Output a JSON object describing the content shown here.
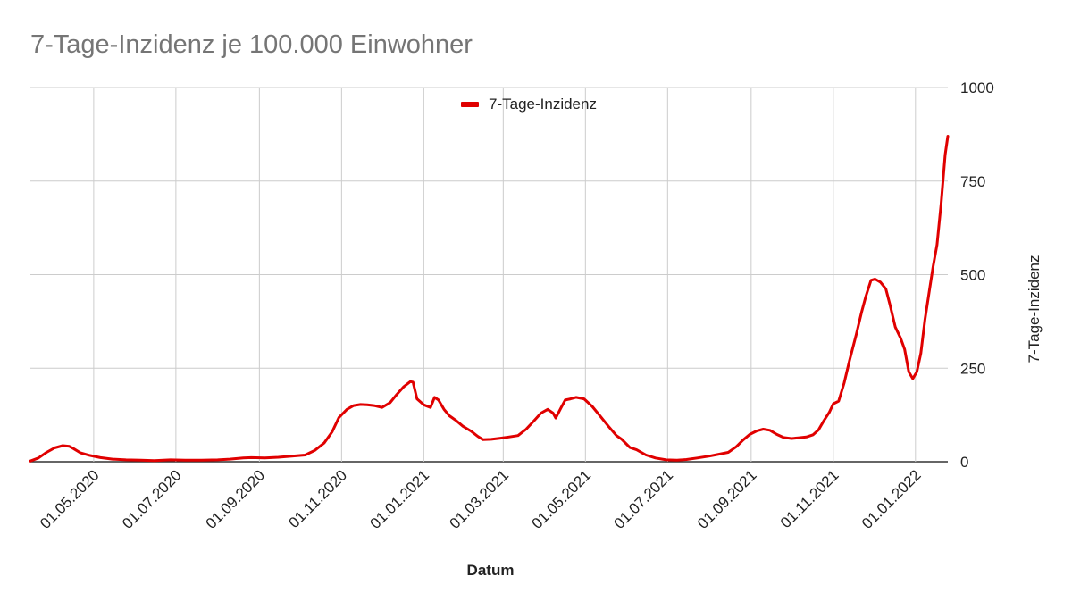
{
  "chart_data": {
    "type": "line",
    "title": "7-Tage-Inzidenz je 100.000 Einwohner",
    "xlabel": "Datum",
    "ylabel": "7-Tage-Inzidenz",
    "x_range": [
      "2020-03-15",
      "2022-01-25"
    ],
    "ylim": [
      0,
      1000
    ],
    "y_ticks": [
      0,
      250,
      500,
      750,
      1000
    ],
    "y_tick_labels": [
      "0",
      "250",
      "500",
      "750",
      "1000"
    ],
    "x_ticks": [
      "2020-05-01",
      "2020-07-01",
      "2020-09-01",
      "2020-11-01",
      "2021-01-01",
      "2021-03-01",
      "2021-05-01",
      "2021-07-01",
      "2021-09-01",
      "2021-11-01",
      "2022-01-01"
    ],
    "x_tick_labels": [
      "01.05.2020",
      "01.07.2020",
      "01.09.2020",
      "01.11.2020",
      "01.01.2021",
      "01.03.2021",
      "01.05.2021",
      "01.07.2021",
      "01.09.2021",
      "01.11.2021",
      "01.01.2022"
    ],
    "grid": true,
    "legend_position": "top",
    "series": [
      {
        "name": "7-Tage-Inzidenz",
        "color": "#e00000",
        "points": [
          [
            "2020-03-15",
            2
          ],
          [
            "2020-03-21",
            10
          ],
          [
            "2020-03-27",
            25
          ],
          [
            "2020-04-02",
            37
          ],
          [
            "2020-04-08",
            43
          ],
          [
            "2020-04-13",
            41
          ],
          [
            "2020-04-16",
            35
          ],
          [
            "2020-04-21",
            24
          ],
          [
            "2020-04-28",
            17
          ],
          [
            "2020-05-06",
            11
          ],
          [
            "2020-05-15",
            7
          ],
          [
            "2020-05-25",
            5
          ],
          [
            "2020-06-05",
            4
          ],
          [
            "2020-06-15",
            3
          ],
          [
            "2020-06-27",
            5
          ],
          [
            "2020-07-08",
            4
          ],
          [
            "2020-07-20",
            4
          ],
          [
            "2020-08-01",
            5
          ],
          [
            "2020-08-10",
            7
          ],
          [
            "2020-08-20",
            10
          ],
          [
            "2020-08-26",
            11
          ],
          [
            "2020-09-05",
            10
          ],
          [
            "2020-09-15",
            12
          ],
          [
            "2020-09-25",
            15
          ],
          [
            "2020-10-05",
            18
          ],
          [
            "2020-10-12",
            30
          ],
          [
            "2020-10-19",
            50
          ],
          [
            "2020-10-25",
            80
          ],
          [
            "2020-10-30",
            118
          ],
          [
            "2020-11-05",
            140
          ],
          [
            "2020-11-10",
            150
          ],
          [
            "2020-11-15",
            153
          ],
          [
            "2020-11-20",
            152
          ],
          [
            "2020-11-25",
            150
          ],
          [
            "2020-12-01",
            145
          ],
          [
            "2020-12-07",
            158
          ],
          [
            "2020-12-12",
            180
          ],
          [
            "2020-12-17",
            200
          ],
          [
            "2020-12-22",
            214
          ],
          [
            "2020-12-24",
            213
          ],
          [
            "2020-12-27",
            168
          ],
          [
            "2021-01-01",
            152
          ],
          [
            "2021-01-06",
            145
          ],
          [
            "2021-01-09",
            172
          ],
          [
            "2021-01-12",
            165
          ],
          [
            "2021-01-16",
            140
          ],
          [
            "2021-01-20",
            123
          ],
          [
            "2021-01-25",
            110
          ],
          [
            "2021-01-30",
            95
          ],
          [
            "2021-02-05",
            82
          ],
          [
            "2021-02-10",
            68
          ],
          [
            "2021-02-14",
            59
          ],
          [
            "2021-02-20",
            60
          ],
          [
            "2021-02-27",
            63
          ],
          [
            "2021-03-05",
            66
          ],
          [
            "2021-03-12",
            70
          ],
          [
            "2021-03-18",
            87
          ],
          [
            "2021-03-24",
            110
          ],
          [
            "2021-03-29",
            130
          ],
          [
            "2021-04-03",
            140
          ],
          [
            "2021-04-07",
            130
          ],
          [
            "2021-04-09",
            117
          ],
          [
            "2021-04-13",
            145
          ],
          [
            "2021-04-16",
            165
          ],
          [
            "2021-04-20",
            168
          ],
          [
            "2021-04-24",
            172
          ],
          [
            "2021-04-30",
            168
          ],
          [
            "2021-05-06",
            148
          ],
          [
            "2021-05-12",
            122
          ],
          [
            "2021-05-18",
            95
          ],
          [
            "2021-05-24",
            70
          ],
          [
            "2021-05-28",
            60
          ],
          [
            "2021-06-03",
            38
          ],
          [
            "2021-06-08",
            32
          ],
          [
            "2021-06-15",
            18
          ],
          [
            "2021-06-22",
            10
          ],
          [
            "2021-06-30",
            5
          ],
          [
            "2021-07-08",
            4
          ],
          [
            "2021-07-15",
            6
          ],
          [
            "2021-07-23",
            10
          ],
          [
            "2021-08-01",
            15
          ],
          [
            "2021-08-08",
            20
          ],
          [
            "2021-08-15",
            25
          ],
          [
            "2021-08-21",
            40
          ],
          [
            "2021-08-26",
            58
          ],
          [
            "2021-08-31",
            73
          ],
          [
            "2021-09-05",
            82
          ],
          [
            "2021-09-10",
            87
          ],
          [
            "2021-09-15",
            84
          ],
          [
            "2021-09-20",
            73
          ],
          [
            "2021-09-25",
            65
          ],
          [
            "2021-10-01",
            62
          ],
          [
            "2021-10-06",
            64
          ],
          [
            "2021-10-12",
            66
          ],
          [
            "2021-10-17",
            72
          ],
          [
            "2021-10-21",
            85
          ],
          [
            "2021-10-25",
            110
          ],
          [
            "2021-10-29",
            132
          ],
          [
            "2021-11-01",
            155
          ],
          [
            "2021-11-05",
            162
          ],
          [
            "2021-11-09",
            210
          ],
          [
            "2021-11-13",
            270
          ],
          [
            "2021-11-18",
            340
          ],
          [
            "2021-11-22",
            400
          ],
          [
            "2021-11-25",
            440
          ],
          [
            "2021-11-29",
            485
          ],
          [
            "2021-12-02",
            488
          ],
          [
            "2021-12-06",
            480
          ],
          [
            "2021-12-10",
            462
          ],
          [
            "2021-12-13",
            420
          ],
          [
            "2021-12-17",
            360
          ],
          [
            "2021-12-21",
            330
          ],
          [
            "2021-12-24",
            300
          ],
          [
            "2021-12-27",
            240
          ],
          [
            "2021-12-30",
            222
          ],
          [
            "2022-01-02",
            240
          ],
          [
            "2022-01-05",
            290
          ],
          [
            "2022-01-08",
            380
          ],
          [
            "2022-01-11",
            450
          ],
          [
            "2022-01-14",
            520
          ],
          [
            "2022-01-17",
            580
          ],
          [
            "2022-01-20",
            690
          ],
          [
            "2022-01-23",
            820
          ],
          [
            "2022-01-25",
            870
          ]
        ]
      }
    ]
  }
}
